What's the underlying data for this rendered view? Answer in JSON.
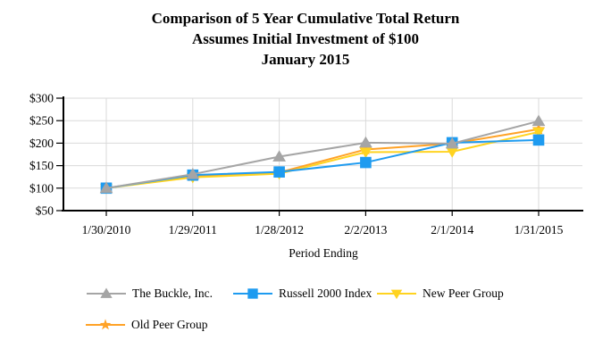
{
  "chart_data": {
    "type": "line",
    "title_lines": [
      "Comparison of 5 Year Cumulative Total Return",
      "Assumes Initial Investment of $100",
      "January 2015"
    ],
    "categories": [
      "1/30/2010",
      "1/29/2011",
      "1/28/2012",
      "2/2/2013",
      "2/1/2014",
      "1/31/2015"
    ],
    "series": [
      {
        "name": "The Buckle, Inc.",
        "marker": "triangle-up",
        "color": "#A5A5A5",
        "values": [
          100,
          131,
          170,
          201,
          199,
          249
        ]
      },
      {
        "name": "Russell 2000 Index",
        "marker": "square",
        "color": "#1E9BF0",
        "values": [
          100,
          129,
          136,
          157,
          201,
          207
        ]
      },
      {
        "name": "New Peer Group",
        "marker": "triangle-down",
        "color": "#FFD320",
        "values": [
          100,
          124,
          132,
          180,
          181,
          225
        ]
      },
      {
        "name": "Old Peer Group",
        "marker": "star",
        "color": "#FFA226",
        "values": [
          100,
          127,
          135,
          186,
          199,
          231
        ]
      }
    ],
    "xlabel": "Period Ending",
    "ylabel": "",
    "y_tick_labels": [
      "$50",
      "$100",
      "$150",
      "$200",
      "$250",
      "$300"
    ],
    "ylim": [
      50,
      300
    ],
    "y_step": 50,
    "grid": true,
    "legend_position": "bottom",
    "axis_color": "#000000",
    "grid_color": "#DADADA"
  }
}
